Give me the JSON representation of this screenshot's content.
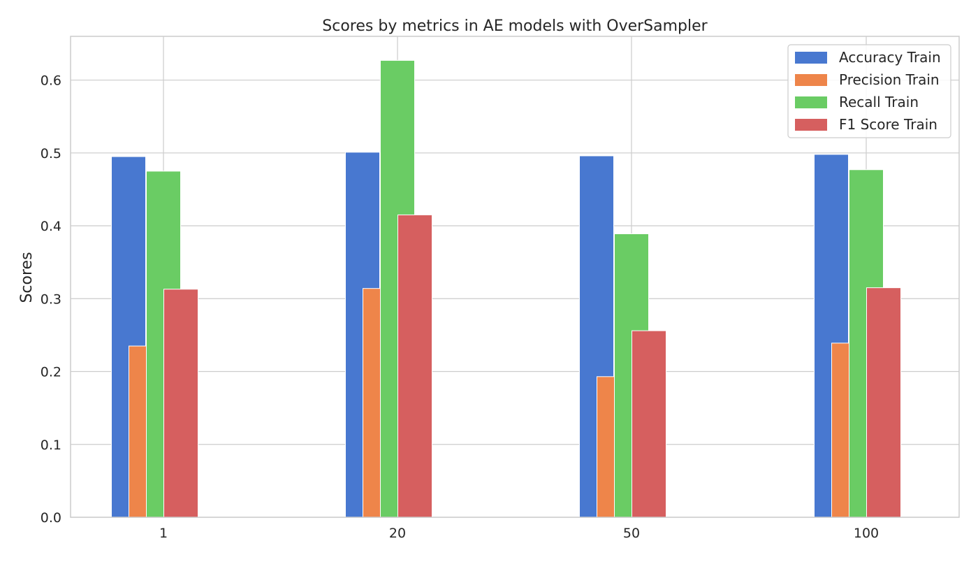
{
  "chart_data": {
    "type": "bar",
    "title": "Scores by metrics in AE models with OverSampler",
    "xlabel": "",
    "ylabel": "Scores",
    "categories": [
      "1",
      "20",
      "50",
      "100"
    ],
    "ylim": [
      0,
      0.66
    ],
    "yticks": [
      "0.0",
      "0.1",
      "0.2",
      "0.3",
      "0.4",
      "0.5",
      "0.6"
    ],
    "grid": true,
    "legend_position": "top-right",
    "series": [
      {
        "name": "Accuracy Train",
        "color": "#4878d0",
        "values": [
          0.495,
          0.501,
          0.496,
          0.498
        ]
      },
      {
        "name": "Precision Train",
        "color": "#ee854a",
        "values": [
          0.235,
          0.314,
          0.193,
          0.239
        ]
      },
      {
        "name": "Recall Train",
        "color": "#6acc64",
        "values": [
          0.475,
          0.627,
          0.389,
          0.477
        ]
      },
      {
        "name": "F1 Score Train",
        "color": "#d65f5f",
        "values": [
          0.313,
          0.415,
          0.256,
          0.315
        ]
      }
    ]
  }
}
